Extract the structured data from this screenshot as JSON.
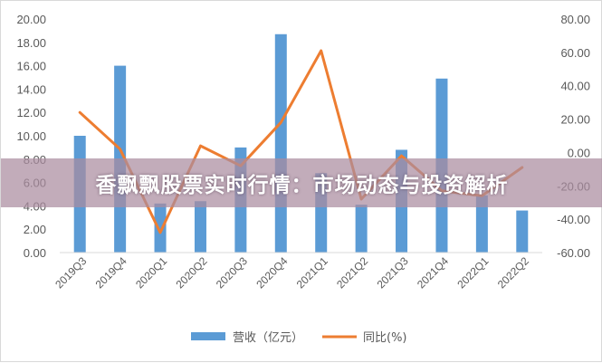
{
  "banner": {
    "title": "香飘飘股票实时行情：市场动态与投资解析"
  },
  "chart_data": {
    "type": "bar",
    "categories": [
      "2019Q3",
      "2019Q4",
      "2020Q1",
      "2020Q2",
      "2020Q3",
      "2020Q4",
      "2021Q1",
      "2021Q2",
      "2021Q3",
      "2021Q4",
      "2022Q1",
      "2022Q2"
    ],
    "series": [
      {
        "name": "营收（亿元）",
        "type": "bar",
        "axis": "left",
        "color": "#5b9bd5",
        "values": [
          10.0,
          16.0,
          4.2,
          4.4,
          9.0,
          18.7,
          6.8,
          4.1,
          8.8,
          14.9,
          4.9,
          3.6
        ]
      },
      {
        "name": "同比(%)",
        "type": "line",
        "axis": "right",
        "color": "#ed7d31",
        "values": [
          24,
          2,
          -48,
          4,
          -8,
          18,
          61,
          -28,
          -2,
          -23,
          -26,
          -9
        ]
      }
    ],
    "y_left": {
      "min": 0,
      "max": 20,
      "step": 2,
      "ticks": [
        "0.00",
        "2.00",
        "4.00",
        "6.00",
        "8.00",
        "10.00",
        "12.00",
        "14.00",
        "16.00",
        "18.00",
        "20.00"
      ]
    },
    "y_right": {
      "min": -60,
      "max": 80,
      "step": 20,
      "ticks": [
        "-60.00",
        "-40.00",
        "-20.00",
        "0.00",
        "20.00",
        "40.00",
        "60.00",
        "80.00"
      ]
    },
    "grid": false,
    "legend": "bottom-center"
  }
}
